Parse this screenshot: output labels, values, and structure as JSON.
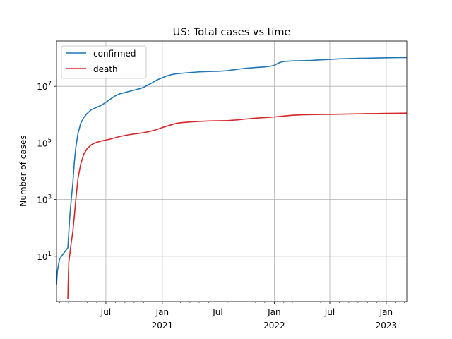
{
  "chart_data": {
    "type": "line",
    "title": "US: Total cases vs time",
    "ylabel": "Number of cases",
    "xlabel": "",
    "yscale": "log",
    "ylim_log10": [
      -0.6,
      8.6
    ],
    "xlim": [
      "2020-01-22",
      "2023-03-09"
    ],
    "grid": true,
    "legend": "upper-left",
    "y_ticks": [
      {
        "base": "10",
        "exp": "1",
        "log10": 1
      },
      {
        "base": "10",
        "exp": "3",
        "log10": 3
      },
      {
        "base": "10",
        "exp": "5",
        "log10": 5
      },
      {
        "base": "10",
        "exp": "7",
        "log10": 7
      }
    ],
    "x_major_ticks": [
      {
        "date": "2020-07-01",
        "label": "Jul",
        "year": ""
      },
      {
        "date": "2021-01-01",
        "label": "Jan",
        "year": "2021"
      },
      {
        "date": "2021-07-01",
        "label": "Jul",
        "year": ""
      },
      {
        "date": "2022-01-01",
        "label": "Jan",
        "year": "2022"
      },
      {
        "date": "2022-07-01",
        "label": "Jul",
        "year": ""
      },
      {
        "date": "2023-01-01",
        "label": "Jan",
        "year": "2023"
      }
    ],
    "series": [
      {
        "name": "confirmed",
        "color": "#1f77b4",
        "points": [
          [
            "2020-01-22",
            1
          ],
          [
            "2020-01-25",
            3
          ],
          [
            "2020-02-01",
            8
          ],
          [
            "2020-02-15",
            13
          ],
          [
            "2020-02-28",
            20
          ],
          [
            "2020-03-05",
            230
          ],
          [
            "2020-03-10",
            1000
          ],
          [
            "2020-03-15",
            3500
          ],
          [
            "2020-03-20",
            20000
          ],
          [
            "2020-03-25",
            70000
          ],
          [
            "2020-04-01",
            215000
          ],
          [
            "2020-04-10",
            500000
          ],
          [
            "2020-04-20",
            790000
          ],
          [
            "2020-05-01",
            1100000
          ],
          [
            "2020-05-15",
            1500000
          ],
          [
            "2020-06-01",
            1800000
          ],
          [
            "2020-06-15",
            2100000
          ],
          [
            "2020-07-01",
            2700000
          ],
          [
            "2020-07-15",
            3500000
          ],
          [
            "2020-08-01",
            4600000
          ],
          [
            "2020-08-15",
            5400000
          ],
          [
            "2020-09-01",
            6000000
          ],
          [
            "2020-09-15",
            6600000
          ],
          [
            "2020-10-01",
            7300000
          ],
          [
            "2020-10-15",
            8000000
          ],
          [
            "2020-11-01",
            9100000
          ],
          [
            "2020-11-15",
            11000000
          ],
          [
            "2020-12-01",
            13700000
          ],
          [
            "2020-12-15",
            16800000
          ],
          [
            "2021-01-01",
            20000000
          ],
          [
            "2021-01-15",
            23000000
          ],
          [
            "2021-02-01",
            26000000
          ],
          [
            "2021-02-15",
            27600000
          ],
          [
            "2021-03-01",
            28600000
          ],
          [
            "2021-04-01",
            30500000
          ],
          [
            "2021-05-01",
            32300000
          ],
          [
            "2021-06-01",
            33300000
          ],
          [
            "2021-07-01",
            33700000
          ],
          [
            "2021-08-01",
            35500000
          ],
          [
            "2021-08-15",
            37500000
          ],
          [
            "2021-09-01",
            39500000
          ],
          [
            "2021-09-15",
            41500000
          ],
          [
            "2021-10-01",
            43300000
          ],
          [
            "2021-11-01",
            46000000
          ],
          [
            "2021-12-01",
            48500000
          ],
          [
            "2021-12-20",
            51500000
          ],
          [
            "2022-01-01",
            55000000
          ],
          [
            "2022-01-10",
            62000000
          ],
          [
            "2022-01-20",
            70000000
          ],
          [
            "2022-02-01",
            75000000
          ],
          [
            "2022-03-01",
            79000000
          ],
          [
            "2022-04-01",
            80000000
          ],
          [
            "2022-05-01",
            82000000
          ],
          [
            "2022-06-01",
            86000000
          ],
          [
            "2022-07-01",
            89000000
          ],
          [
            "2022-08-01",
            93000000
          ],
          [
            "2022-09-01",
            95000000
          ],
          [
            "2022-10-01",
            97000000
          ],
          [
            "2022-11-01",
            98000000
          ],
          [
            "2022-12-01",
            100000000
          ],
          [
            "2023-01-01",
            101500000
          ],
          [
            "2023-02-01",
            102700000
          ],
          [
            "2023-03-09",
            103800000
          ]
        ]
      },
      {
        "name": "death",
        "color": "#d62728",
        "points": [
          [
            "2020-02-28",
            0.3
          ],
          [
            "2020-02-29",
            1
          ],
          [
            "2020-03-02",
            6
          ],
          [
            "2020-03-05",
            11
          ],
          [
            "2020-03-10",
            30
          ],
          [
            "2020-03-15",
            70
          ],
          [
            "2020-03-20",
            250
          ],
          [
            "2020-03-25",
            1000
          ],
          [
            "2020-04-01",
            5500
          ],
          [
            "2020-04-10",
            18000
          ],
          [
            "2020-04-20",
            40000
          ],
          [
            "2020-05-01",
            63000
          ],
          [
            "2020-05-15",
            87000
          ],
          [
            "2020-06-01",
            105000
          ],
          [
            "2020-06-15",
            116000
          ],
          [
            "2020-07-01",
            127000
          ],
          [
            "2020-07-15",
            136000
          ],
          [
            "2020-08-01",
            153000
          ],
          [
            "2020-08-15",
            168000
          ],
          [
            "2020-09-01",
            183000
          ],
          [
            "2020-09-15",
            195000
          ],
          [
            "2020-10-01",
            207000
          ],
          [
            "2020-10-15",
            217000
          ],
          [
            "2020-11-01",
            230000
          ],
          [
            "2020-11-15",
            246000
          ],
          [
            "2020-12-01",
            270000
          ],
          [
            "2020-12-15",
            300000
          ],
          [
            "2021-01-01",
            350000
          ],
          [
            "2021-01-15",
            390000
          ],
          [
            "2021-02-01",
            440000
          ],
          [
            "2021-02-15",
            490000
          ],
          [
            "2021-03-01",
            515000
          ],
          [
            "2021-04-01",
            550000
          ],
          [
            "2021-05-01",
            575000
          ],
          [
            "2021-06-01",
            595000
          ],
          [
            "2021-07-01",
            605000
          ],
          [
            "2021-08-01",
            615000
          ],
          [
            "2021-09-01",
            650000
          ],
          [
            "2021-10-01",
            700000
          ],
          [
            "2021-11-01",
            750000
          ],
          [
            "2021-12-01",
            785000
          ],
          [
            "2022-01-01",
            825000
          ],
          [
            "2022-02-01",
            890000
          ],
          [
            "2022-03-01",
            950000
          ],
          [
            "2022-04-01",
            985000
          ],
          [
            "2022-05-01",
            1000000
          ],
          [
            "2022-06-01",
            1010000
          ],
          [
            "2022-07-01",
            1020000
          ],
          [
            "2022-08-01",
            1035000
          ],
          [
            "2022-09-01",
            1050000
          ],
          [
            "2022-10-01",
            1065000
          ],
          [
            "2022-11-01",
            1078000
          ],
          [
            "2022-12-01",
            1090000
          ],
          [
            "2023-01-01",
            1105000
          ],
          [
            "2023-02-01",
            1115000
          ],
          [
            "2023-03-09",
            1125000
          ]
        ]
      }
    ]
  }
}
